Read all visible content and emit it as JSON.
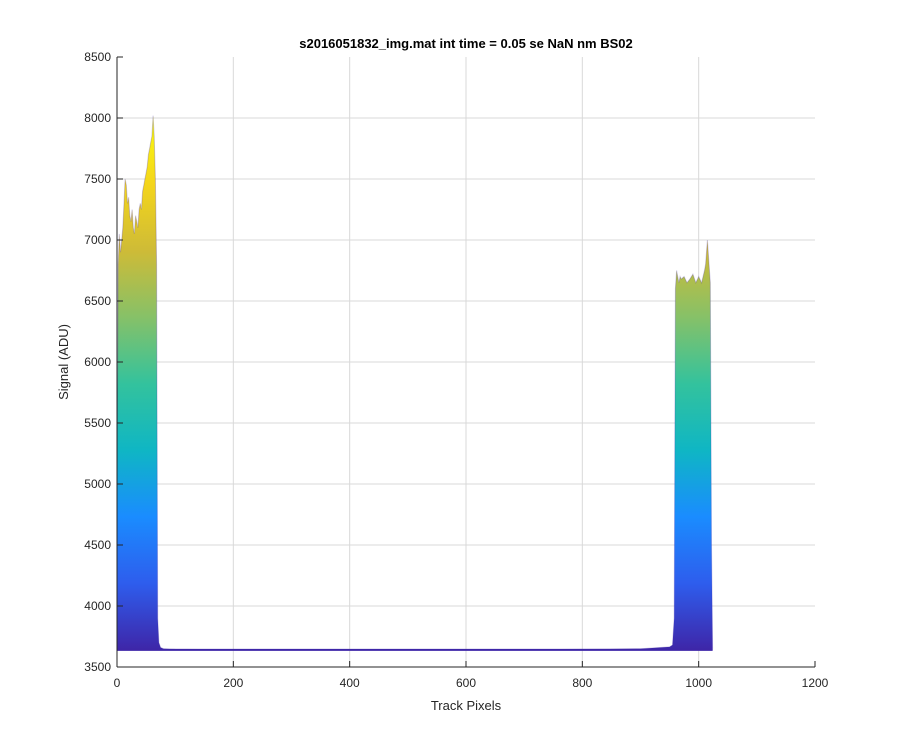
{
  "chart_data": {
    "type": "area",
    "title": "s2016051832_img.mat int time = 0.05 se  NaN nm BS02",
    "xlabel": "Track Pixels",
    "ylabel": "Signal (ADU)",
    "xlim": [
      0,
      1200
    ],
    "ylim": [
      3500,
      8500
    ],
    "xticks": [
      0,
      200,
      400,
      600,
      800,
      1000,
      1200
    ],
    "yticks": [
      3500,
      4000,
      4500,
      5000,
      5500,
      6000,
      6500,
      7000,
      7500,
      8000,
      8500
    ],
    "grid": true,
    "colormap": [
      "#3e26a8",
      "#2e5ded",
      "#1a8cff",
      "#0fb6c4",
      "#33c29d",
      "#86c168",
      "#cebb37",
      "#f4d51b",
      "#f9fb0e"
    ],
    "baseline": 3640,
    "series": [
      {
        "x": [
          0,
          2,
          4,
          6,
          8,
          10,
          12,
          14,
          16,
          18,
          20,
          22,
          24,
          26,
          28,
          30,
          32,
          34,
          36,
          38,
          40,
          42,
          44,
          46,
          48,
          50,
          52,
          54,
          56,
          58,
          60,
          62,
          64,
          66,
          68,
          70,
          72,
          75,
          80,
          100,
          200,
          300,
          400,
          500,
          600,
          700,
          800,
          900,
          950,
          955,
          958,
          960,
          962,
          964,
          966,
          968,
          970,
          975,
          980,
          985,
          990,
          995,
          1000,
          1005,
          1010,
          1012,
          1015,
          1020,
          1022,
          1024
        ],
        "y": [
          5000,
          6800,
          7050,
          6900,
          7000,
          7100,
          7300,
          7500,
          7450,
          7300,
          7350,
          7200,
          7150,
          7250,
          7100,
          7050,
          7200,
          7150,
          7100,
          7250,
          7300,
          7250,
          7400,
          7450,
          7500,
          7550,
          7600,
          7700,
          7750,
          7800,
          7850,
          8020,
          7850,
          7500,
          6800,
          3900,
          3700,
          3660,
          3650,
          3645,
          3640,
          3640,
          3640,
          3640,
          3640,
          3640,
          3645,
          3650,
          3665,
          3680,
          3900,
          6600,
          6750,
          6700,
          6650,
          6700,
          6680,
          6700,
          6650,
          6680,
          6720,
          6650,
          6700,
          6650,
          6750,
          6800,
          7000,
          6650,
          4500,
          3650
        ]
      }
    ]
  }
}
